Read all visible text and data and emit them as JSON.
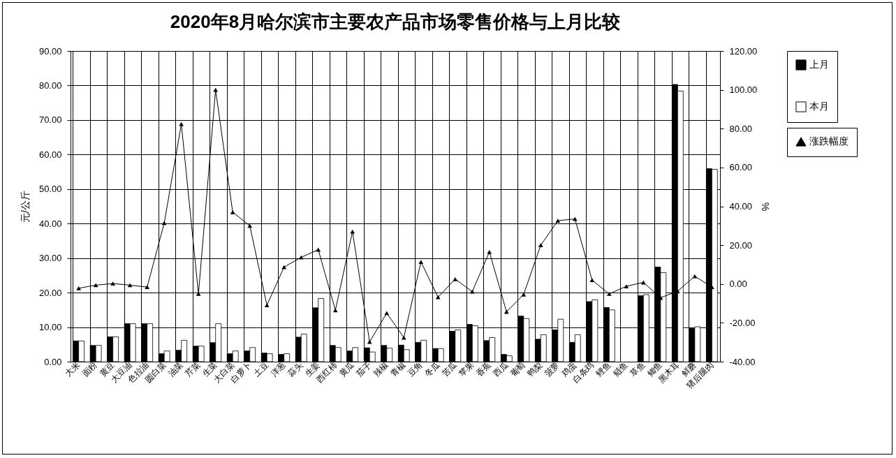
{
  "chart_data": {
    "type": "bar",
    "title": "2020年8月哈尔滨市主要农产品市场零售价格与上月比较",
    "categories": [
      "大米",
      "面粉",
      "黄豆",
      "大豆油",
      "色拉油",
      "圆白菜",
      "油菜",
      "芹菜",
      "生菜",
      "大白菜",
      "白萝卜",
      "土豆",
      "洋葱",
      "蒜头",
      "生姜",
      "西红柿",
      "黄瓜",
      "茄子",
      "辣椒",
      "青椒",
      "豆角",
      "冬瓜",
      "苦瓜",
      "苹果",
      "香蕉",
      "西瓜",
      "葡萄",
      "鸭梨",
      "菠萝",
      "鸡蛋",
      "白条鸡",
      "鲤鱼",
      "鲢鱼",
      "草鱼",
      "鲫鱼",
      "黑木耳",
      "鲜蘑",
      "猪后腿肉"
    ],
    "series": [
      {
        "name": "上月",
        "color": "#000000",
        "values": [
          6.0,
          4.7,
          7.2,
          11.0,
          11.0,
          2.3,
          3.3,
          4.5,
          5.5,
          2.3,
          3.1,
          2.5,
          2.1,
          7.1,
          15.6,
          4.7,
          3.1,
          4.0,
          4.7,
          4.8,
          5.6,
          3.8,
          8.8,
          10.8,
          6.1,
          2.1,
          13.2,
          6.5,
          9.2,
          5.6,
          17.4,
          15.7,
          null,
          19.1,
          27.4,
          80.3,
          9.6,
          55.9
        ]
      },
      {
        "name": "本月",
        "color": "#ffffff",
        "values": [
          6.0,
          4.7,
          7.2,
          11.0,
          11.0,
          3.1,
          6.2,
          4.5,
          11.0,
          3.1,
          4.1,
          2.3,
          2.3,
          8.0,
          18.3,
          4.1,
          4.1,
          2.8,
          3.9,
          3.5,
          6.2,
          3.8,
          9.2,
          10.4,
          7.0,
          1.7,
          12.5,
          7.8,
          12.3,
          7.8,
          17.9,
          15.0,
          null,
          19.4,
          25.8,
          78.4,
          10.1,
          55.7
        ]
      },
      {
        "name": "涨跌幅度",
        "color": "#000000",
        "type": "line",
        "axis": "y2",
        "values": [
          -2.2,
          -0.6,
          0.2,
          -0.6,
          -1.6,
          31.4,
          82.4,
          -5.1,
          100.0,
          37.0,
          30.0,
          -10.9,
          8.7,
          13.7,
          17.7,
          -13.5,
          27.0,
          -29.8,
          -15.0,
          -27.6,
          11.4,
          -6.8,
          2.5,
          -3.9,
          16.5,
          -14.3,
          -5.4,
          20.0,
          32.6,
          33.5,
          2.0,
          -5.1,
          -1.2,
          0.8,
          -7.1,
          -3.7,
          4.0,
          -1.6
        ]
      }
    ],
    "ylabel": "元/公斤",
    "y2label": "%",
    "ylim": [
      0,
      90
    ],
    "yticks": [
      {
        "value": 0,
        "label": "0.00"
      },
      {
        "value": 10,
        "label": "10.00"
      },
      {
        "value": 20,
        "label": "20.00"
      },
      {
        "value": 30,
        "label": "30.00"
      },
      {
        "value": 40,
        "label": "40.00"
      },
      {
        "value": 50,
        "label": "50.00"
      },
      {
        "value": 60,
        "label": "60.00"
      },
      {
        "value": 70,
        "label": "70.00"
      },
      {
        "value": 80,
        "label": "80.00"
      },
      {
        "value": 90,
        "label": "90.00"
      }
    ],
    "y2lim": [
      -40,
      120
    ],
    "y2ticks": [
      {
        "value": -40,
        "label": "-40.00"
      },
      {
        "value": -20,
        "label": "-20.00"
      },
      {
        "value": 0,
        "label": "0.00"
      },
      {
        "value": 20,
        "label": "20.00"
      },
      {
        "value": 40,
        "label": "40.00"
      },
      {
        "value": 60,
        "label": "60.00"
      },
      {
        "value": 80,
        "label": "80.00"
      },
      {
        "value": 100,
        "label": "100.00"
      },
      {
        "value": 120,
        "label": "120.00"
      }
    ],
    "grid": true,
    "legend": "right",
    "marker": "triangle",
    "line_style": "solid"
  }
}
